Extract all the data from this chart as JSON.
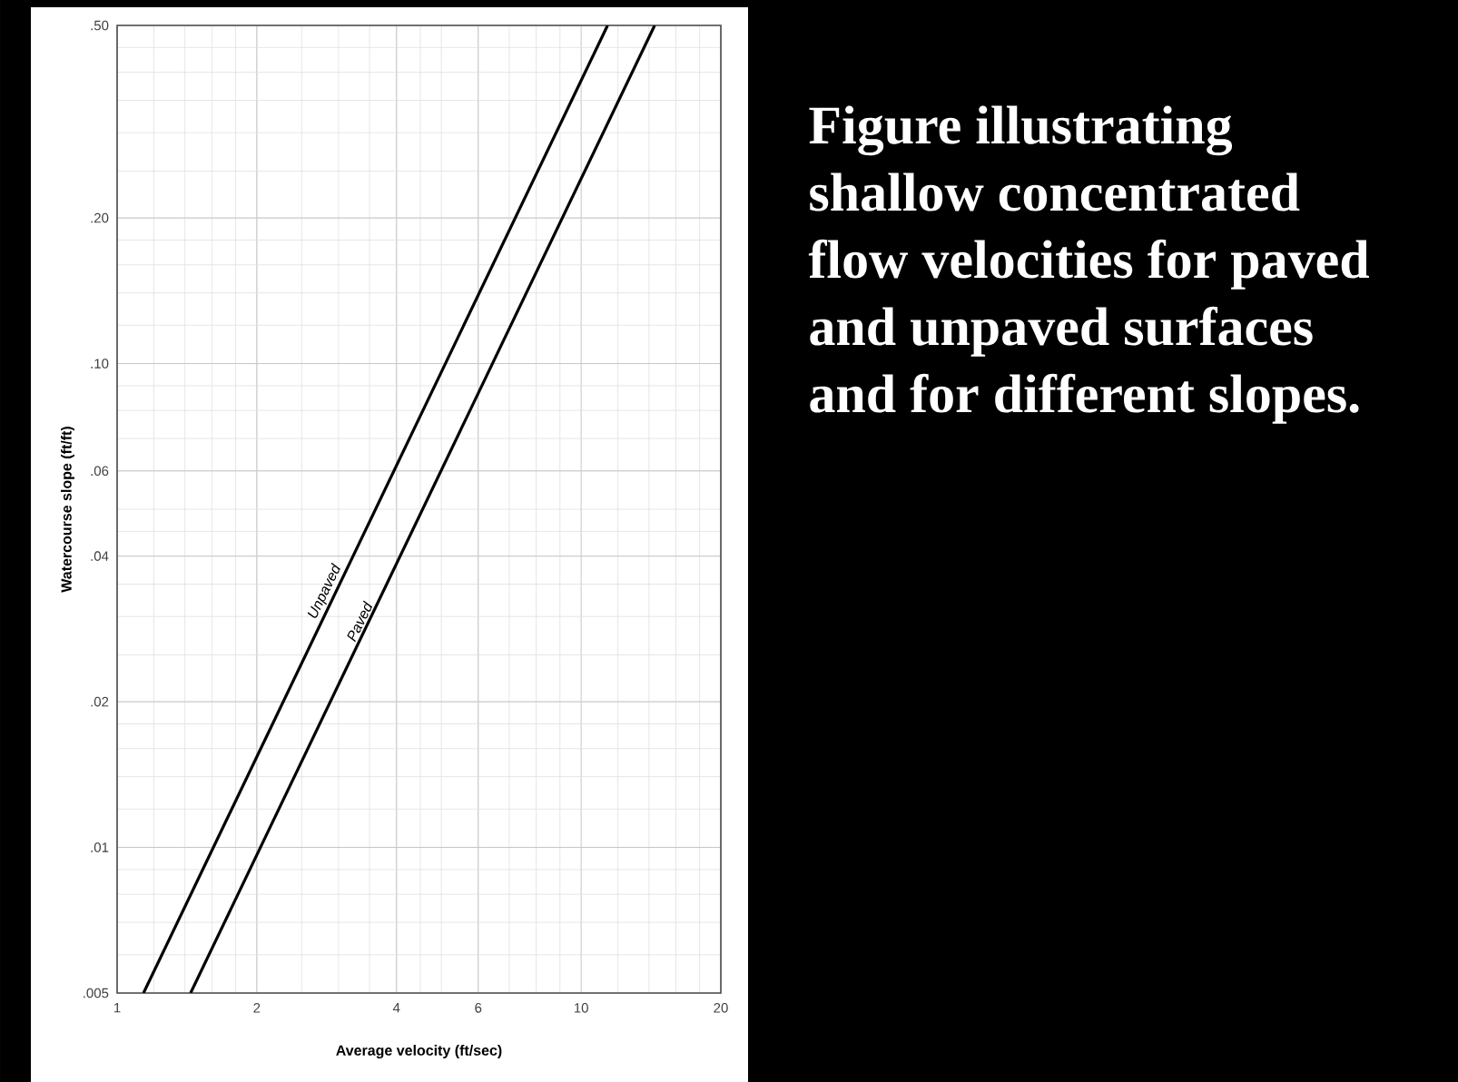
{
  "chart_data": {
    "type": "line",
    "xlabel": "Average velocity (ft/sec)",
    "ylabel": "Watercourse slope (ft/ft)",
    "annotations": [
      "Figure illustrating shallow concentrated flow velocities for paved and unpaved surfaces and for different slopes."
    ],
    "log": "xy",
    "xlim": [
      1,
      20
    ],
    "ylim": [
      0.005,
      0.5
    ],
    "xticks": [
      1,
      2,
      4,
      6,
      10,
      20
    ],
    "yticks": [
      {
        "value": 0.005,
        "label": ".005"
      },
      {
        "value": 0.01,
        "label": ".01"
      },
      {
        "value": 0.02,
        "label": ".02"
      },
      {
        "value": 0.04,
        "label": ".04"
      },
      {
        "value": 0.06,
        "label": ".06"
      },
      {
        "value": 0.1,
        "label": ".10"
      },
      {
        "value": 0.2,
        "label": ".20"
      },
      {
        "value": 0.5,
        "label": ".50"
      }
    ],
    "grid": true,
    "series": [
      {
        "name": "Unpaved",
        "color": "#000000",
        "x": [
          1.14,
          11.4
        ],
        "values": [
          0.005,
          0.5
        ]
      },
      {
        "name": "Paved",
        "color": "#000000",
        "x": [
          1.44,
          14.4
        ],
        "values": [
          0.005,
          0.5
        ]
      }
    ]
  }
}
